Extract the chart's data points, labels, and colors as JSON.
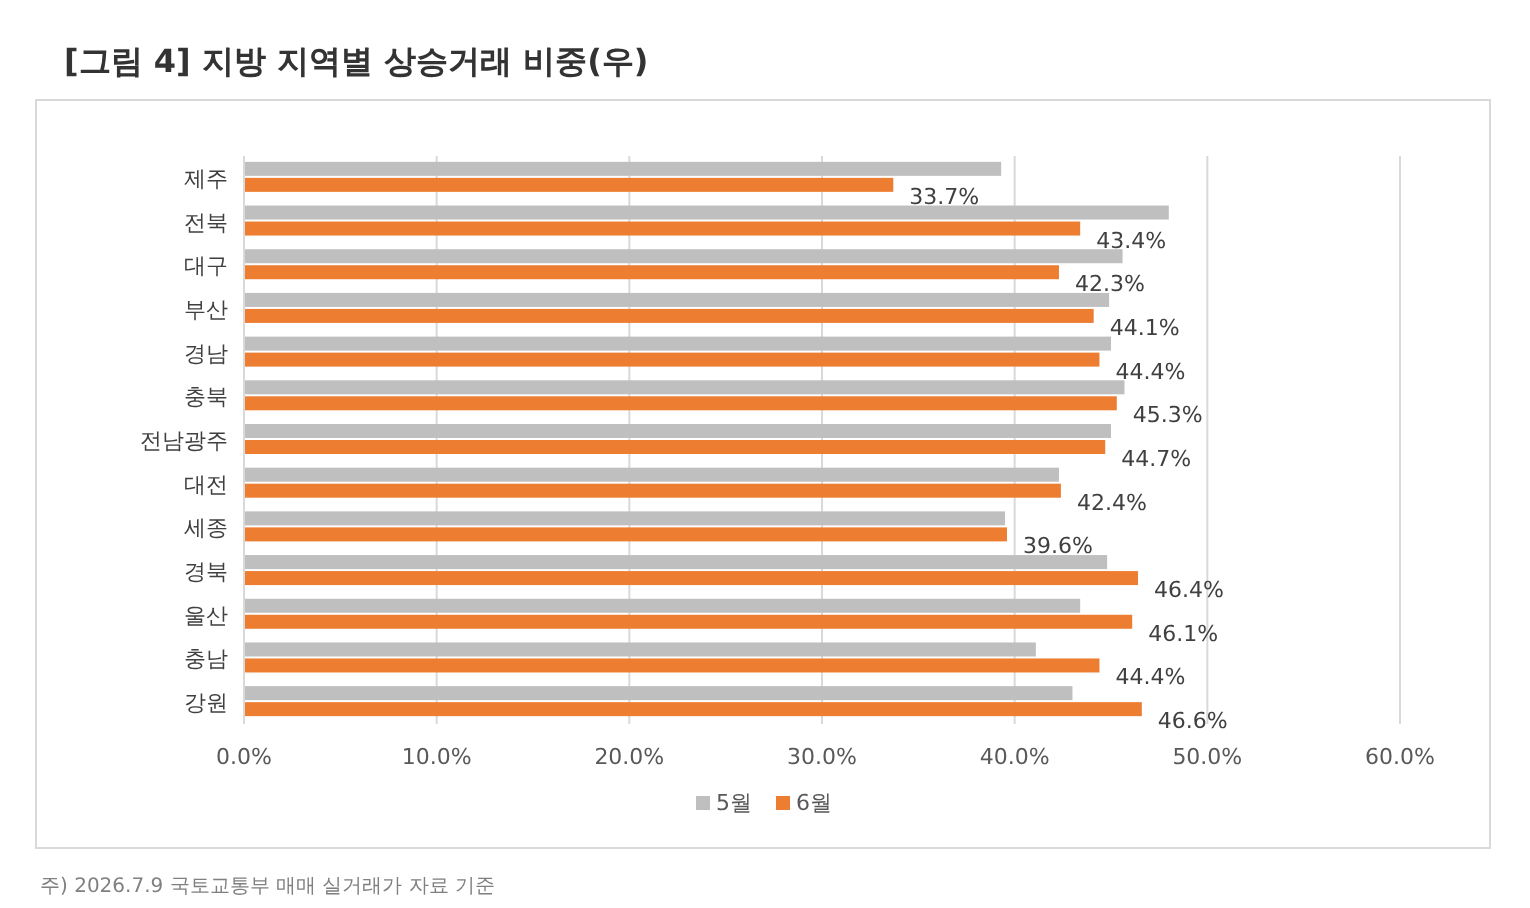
{
  "chart_data": {
    "type": "bar",
    "orientation": "horizontal",
    "title": "[그림 4] 지방 지역별 상승거래 비중(우)",
    "categories": [
      "제주",
      "전북",
      "대구",
      "부산",
      "경남",
      "충북",
      "전남광주",
      "대전",
      "세종",
      "경북",
      "울산",
      "충남",
      "강원"
    ],
    "series": [
      {
        "name": "5월",
        "color": "#bfbfbf",
        "values": [
          39.3,
          48.0,
          45.6,
          44.9,
          45.0,
          45.7,
          45.0,
          42.3,
          39.5,
          44.8,
          43.4,
          41.1,
          43.0
        ]
      },
      {
        "name": "6월",
        "color": "#ed7d31",
        "values": [
          33.7,
          43.4,
          42.3,
          44.1,
          44.4,
          45.3,
          44.7,
          42.4,
          39.6,
          46.4,
          46.1,
          44.4,
          46.6
        ],
        "value_labels": [
          "33.7%",
          "43.4%",
          "42.3%",
          "44.1%",
          "44.4%",
          "45.3%",
          "44.7%",
          "42.4%",
          "39.6%",
          "46.4%",
          "46.1%",
          "44.4%",
          "46.6%"
        ]
      }
    ],
    "xlim": [
      0,
      60
    ],
    "xticks": [
      {
        "value": 0,
        "label": "0.0%"
      },
      {
        "value": 10,
        "label": "10.0%"
      },
      {
        "value": 20,
        "label": "20.0%"
      },
      {
        "value": 30,
        "label": "30.0%"
      },
      {
        "value": 40,
        "label": "40.0%"
      },
      {
        "value": 50,
        "label": "50.0%"
      },
      {
        "value": 60,
        "label": "60.0%"
      }
    ],
    "grid": "x",
    "legend": "bottom",
    "annotations": [
      "주) 2026.7.9 국토교통부 매매 실거래가 자료 기준"
    ]
  }
}
